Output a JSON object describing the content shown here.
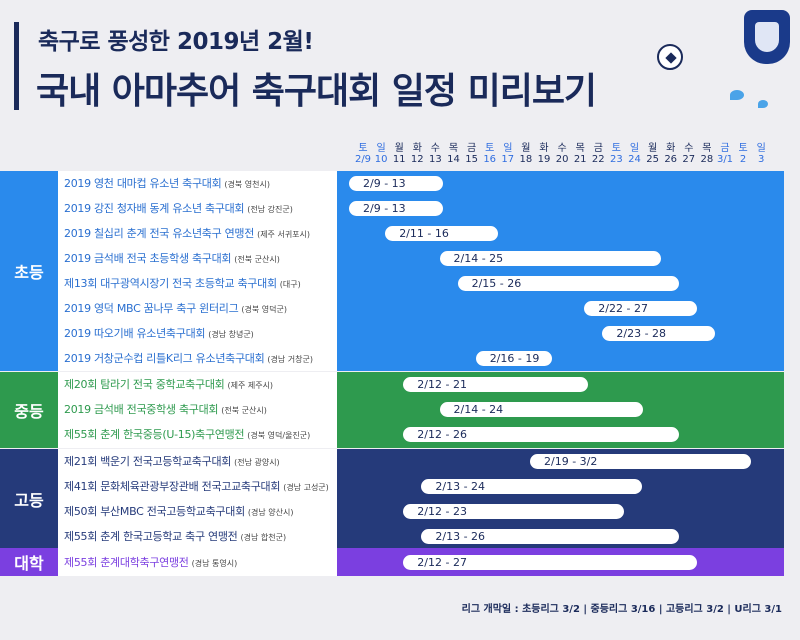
{
  "header": {
    "subtitle": "축구로 풍성한 2019년 2월!",
    "title": "국내 아마추어 축구대회 일정 미리보기"
  },
  "timeline": {
    "days": [
      {
        "dow": "토",
        "date": "2/9",
        "weekend": true
      },
      {
        "dow": "일",
        "date": "10",
        "weekend": true
      },
      {
        "dow": "월",
        "date": "11",
        "weekend": false
      },
      {
        "dow": "화",
        "date": "12",
        "weekend": false
      },
      {
        "dow": "수",
        "date": "13",
        "weekend": false
      },
      {
        "dow": "목",
        "date": "14",
        "weekend": false
      },
      {
        "dow": "금",
        "date": "15",
        "weekend": false
      },
      {
        "dow": "토",
        "date": "16",
        "weekend": true
      },
      {
        "dow": "일",
        "date": "17",
        "weekend": true
      },
      {
        "dow": "월",
        "date": "18",
        "weekend": false
      },
      {
        "dow": "화",
        "date": "19",
        "weekend": false
      },
      {
        "dow": "수",
        "date": "20",
        "weekend": false
      },
      {
        "dow": "목",
        "date": "21",
        "weekend": false
      },
      {
        "dow": "금",
        "date": "22",
        "weekend": false
      },
      {
        "dow": "토",
        "date": "23",
        "weekend": true
      },
      {
        "dow": "일",
        "date": "24",
        "weekend": true
      },
      {
        "dow": "월",
        "date": "25",
        "weekend": false
      },
      {
        "dow": "화",
        "date": "26",
        "weekend": false
      },
      {
        "dow": "수",
        "date": "27",
        "weekend": false
      },
      {
        "dow": "목",
        "date": "28",
        "weekend": false
      },
      {
        "dow": "금",
        "date": "3/1",
        "weekend": true
      },
      {
        "dow": "토",
        "date": "2",
        "weekend": true
      },
      {
        "dow": "일",
        "date": "3",
        "weekend": true
      }
    ]
  },
  "groups": [
    {
      "label": "초등",
      "color": "#2a8aec",
      "events": [
        {
          "name": "2019 영천 대마컵 유소년 축구대회",
          "loc": "(경북 영천시)",
          "range": "2/9 - 13",
          "start": 0,
          "end": 4
        },
        {
          "name": "2019 강진 청자배 동계 유소년 축구대회",
          "loc": "(전남 강진군)",
          "range": "2/9 - 13",
          "start": 0,
          "end": 4
        },
        {
          "name": "2019 칠십리 춘계 전국 유소년축구 연맹전",
          "loc": "(제주 서귀포시)",
          "range": "2/11 - 16",
          "start": 2,
          "end": 7
        },
        {
          "name": "2019 금석배 전국 초등학생 축구대회",
          "loc": "(전북 군산시)",
          "range": "2/14 - 25",
          "start": 5,
          "end": 16
        },
        {
          "name": "제13회 대구광역시장기 전국 초등학교 축구대회",
          "loc": "(대구)",
          "range": "2/15 - 26",
          "start": 6,
          "end": 17
        },
        {
          "name": "2019 영덕 MBC 꿈나무 축구 윈터리그",
          "loc": "(경북 영덕군)",
          "range": "2/22 - 27",
          "start": 13,
          "end": 18
        },
        {
          "name": "2019 따오기배 유소년축구대회",
          "loc": "(경남 창녕군)",
          "range": "2/23 - 28",
          "start": 14,
          "end": 19
        },
        {
          "name": "2019 거창군수컵 리틀K리그 유소년축구대회",
          "loc": "(경남 거창군)",
          "range": "2/16 - 19",
          "start": 7,
          "end": 10
        }
      ]
    },
    {
      "label": "중등",
      "color": "#2e9a4e",
      "events": [
        {
          "name": "제20회 탐라기 전국 중학교축구대회",
          "loc": "(제주 제주시)",
          "range": "2/12 - 21",
          "start": 3,
          "end": 12
        },
        {
          "name": "2019 금석배 전국중학생 축구대회",
          "loc": "(전북 군산시)",
          "range": "2/14 - 24",
          "start": 5,
          "end": 15
        },
        {
          "name": "제55회 춘계 한국중등(U-15)축구연맹전",
          "loc": "(경북 영덕/울진군)",
          "range": "2/12 - 26",
          "start": 3,
          "end": 17
        }
      ]
    },
    {
      "label": "고등",
      "color": "#253a7a",
      "events": [
        {
          "name": "제21회 백운기 전국고등학교축구대회",
          "loc": "(전남 광양시)",
          "range": "2/19 - 3/2",
          "start": 10,
          "end": 21
        },
        {
          "name": "제41회 문화체육관광부장관배 전국고교축구대회",
          "loc": "(경남 고성군)",
          "range": "2/13 - 24",
          "start": 4,
          "end": 15
        },
        {
          "name": "제50회 부산MBC 전국고등학교축구대회",
          "loc": "(경남 양산시)",
          "range": "2/12 - 23",
          "start": 3,
          "end": 14
        },
        {
          "name": "제55회 춘계 한국고등학교 축구 연맹전",
          "loc": "(경남 합천군)",
          "range": "2/13 - 26",
          "start": 4,
          "end": 17
        }
      ]
    },
    {
      "label": "대학",
      "color": "#7b3fe0",
      "events": [
        {
          "name": "제55회 춘계대학축구연맹전",
          "loc": "(경남 통영시)",
          "range": "2/12 - 27",
          "start": 3,
          "end": 18
        }
      ]
    }
  ],
  "footer": {
    "text": "리그 개막일 : 초등리그 3/2  |  중등리그 3/16  |  고등리그 3/2  |  U리그 3/1"
  }
}
